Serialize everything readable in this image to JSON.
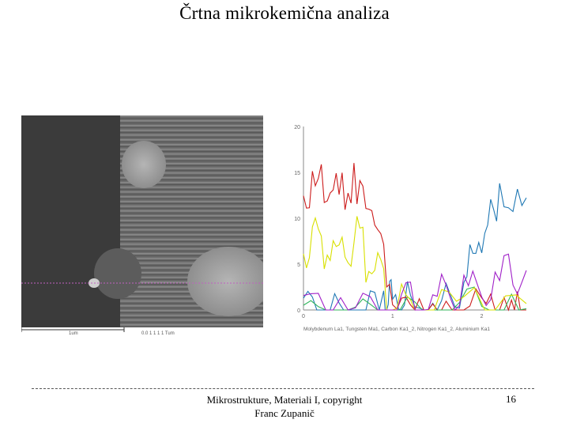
{
  "slide": {
    "title": "Črtna mikrokemična analiza",
    "footer_line1": "Mikrostrukture, Materiali I, copyright",
    "footer_line2": "Franc Zupanič",
    "page_number": "16"
  },
  "sem_image": {
    "scale_label_left": "1um",
    "scale_label_right": "0.0 1 1 1 1 Tum"
  },
  "chart_data": {
    "type": "line",
    "y_tick_labels": [
      "0",
      "5",
      "10",
      "15",
      "20"
    ],
    "x_tick_labels": [
      "0",
      "1",
      "2"
    ],
    "legend": "Molybdenum La1, Tungsten Ma1, Carbon Ka1_2, Nitrogen Ka1_2, Aluminium Ka1",
    "series_colors": [
      "#1f78b4",
      "#cc1c1c",
      "#2fb55a",
      "#d8e000",
      "#a020c8"
    ],
    "series": [
      {
        "color": "#1f78b4",
        "x": [
          0.0,
          0.3,
          0.6,
          0.9,
          1.0,
          1.2,
          1.5,
          1.8,
          2.0,
          2.2,
          2.5
        ],
        "y": [
          1,
          1,
          1,
          1,
          2,
          2,
          1,
          5,
          10,
          13,
          12
        ]
      },
      {
        "color": "#cc1c1c",
        "x": [
          0.0,
          0.2,
          0.4,
          0.6,
          0.8,
          1.0,
          1.3,
          1.6,
          2.0,
          2.3,
          2.5
        ],
        "y": [
          14,
          15,
          14,
          16,
          12,
          3,
          1,
          1,
          1,
          1,
          1
        ]
      },
      {
        "color": "#2fb55a",
        "x": [
          0.0,
          0.5,
          1.0,
          1.5,
          2.0,
          2.5
        ],
        "y": [
          1,
          1,
          1,
          1,
          1,
          1
        ]
      },
      {
        "color": "#d8e000",
        "x": [
          0.0,
          0.2,
          0.4,
          0.6,
          0.8,
          1.0,
          1.3,
          1.8,
          2.5
        ],
        "y": [
          8,
          9,
          7,
          9,
          6,
          2,
          1,
          1,
          1
        ]
      },
      {
        "color": "#a020c8",
        "x": [
          0.0,
          0.5,
          1.0,
          1.3,
          1.6,
          1.9,
          2.2,
          2.5
        ],
        "y": [
          1,
          1,
          1,
          2,
          3,
          4,
          5,
          6
        ]
      }
    ],
    "xlim": [
      0,
      2.5
    ],
    "ylim": [
      0,
      20
    ]
  }
}
